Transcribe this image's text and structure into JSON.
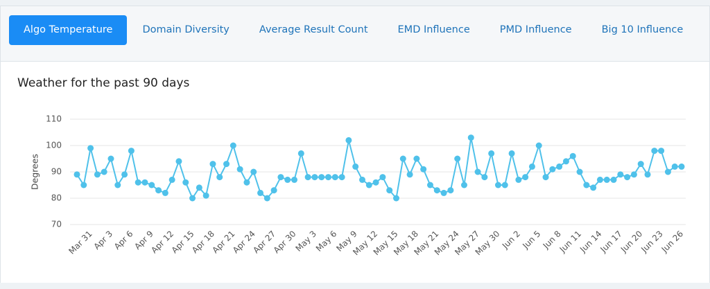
{
  "tabs": [
    "Algo Temperature",
    "Domain Diversity",
    "Average Result Count",
    "EMD Influence",
    "PMD Influence",
    "Big 10 Influence"
  ],
  "active_tab": 0,
  "chart_data": {
    "type": "line",
    "title": "Weather for the past 90 days",
    "y_label": "Degrees",
    "categories": [
      null,
      null,
      "Mar 31",
      null,
      null,
      "Apr 3",
      null,
      null,
      "Apr 6",
      null,
      null,
      "Apr 9",
      null,
      null,
      "Apr 12",
      null,
      null,
      "Apr 15",
      null,
      null,
      "Apr 18",
      null,
      null,
      "Apr 21",
      null,
      null,
      "Apr 24",
      null,
      null,
      "Apr 27",
      null,
      null,
      "Apr 30",
      null,
      null,
      "May 3",
      null,
      null,
      "May 6",
      null,
      null,
      "May 9",
      null,
      null,
      "May 12",
      null,
      null,
      "May 15",
      null,
      null,
      "May 18",
      null,
      null,
      "May 21",
      null,
      null,
      "May 24",
      null,
      null,
      "May 27",
      null,
      null,
      "May 30",
      null,
      null,
      "Jun 2",
      null,
      null,
      "Jun 5",
      null,
      null,
      "Jun 8",
      null,
      null,
      "Jun 11",
      null,
      null,
      "Jun 14",
      null,
      null,
      "Jun 17",
      null,
      null,
      "Jun 20",
      null,
      null,
      "Jun 23",
      null,
      null,
      "Jun 26"
    ],
    "values": [
      89,
      85,
      99,
      89,
      90,
      95,
      85,
      89,
      98,
      86,
      86,
      85,
      83,
      82,
      87,
      94,
      86,
      80,
      84,
      81,
      93,
      88,
      93,
      100,
      91,
      86,
      90,
      82,
      80,
      83,
      88,
      87,
      87,
      97,
      88,
      88,
      88,
      88,
      88,
      88,
      102,
      92,
      87,
      85,
      86,
      88,
      83,
      80,
      95,
      89,
      95,
      91,
      85,
      83,
      82,
      83,
      95,
      85,
      103,
      90,
      88,
      97,
      85,
      85,
      97,
      87,
      88,
      92,
      100,
      88,
      91,
      92,
      94,
      96,
      90,
      85,
      84,
      87,
      87,
      87,
      89,
      88,
      89,
      93,
      89,
      98,
      98,
      90,
      92,
      92
    ],
    "color": "#4fc1ea",
    "ylim": [
      70,
      110
    ],
    "yticks": [
      70,
      80,
      90,
      100,
      110
    ],
    "grid": true
  }
}
